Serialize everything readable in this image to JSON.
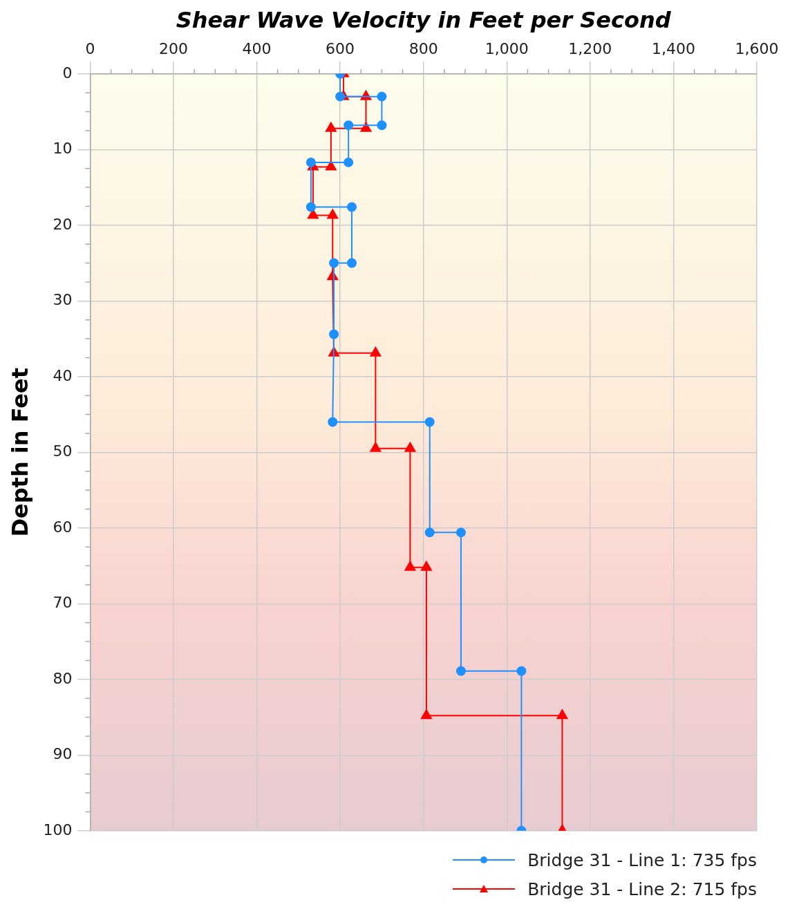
{
  "chart_data": {
    "type": "line",
    "xlabel": "Shear Wave Velocity in Feet per Second",
    "ylabel": "Depth in Feet",
    "xlim": [
      0,
      1600
    ],
    "xticks": [
      0,
      200,
      400,
      600,
      800,
      {
        "value": 1000,
        "label": "1,000"
      },
      {
        "value": 1200,
        "label": "1,200"
      },
      {
        "value": 1400,
        "label": "1,400"
      },
      {
        "value": 1600,
        "label": "1,600"
      }
    ],
    "ylim": [
      100,
      0
    ],
    "yticks": [
      0,
      10,
      20,
      30,
      40,
      50,
      60,
      70,
      80,
      90,
      100
    ],
    "grid": true,
    "legend": "bottom right",
    "line_style": "solid",
    "series": [
      {
        "name": "Bridge 31 - Line 1:  735 fps",
        "color": "#1e90ff",
        "marker": "circle",
        "x": [
          600,
          600,
          700,
          700,
          620,
          620,
          530,
          530,
          628,
          628,
          585,
          585,
          582,
          815,
          815,
          890,
          890,
          1035,
          1035
        ],
        "values": [
          0,
          3,
          3,
          6.8,
          6.8,
          11.7,
          11.7,
          17.6,
          17.6,
          25,
          25,
          34.4,
          46,
          46,
          60.6,
          60.6,
          78.9,
          78.9,
          100
        ]
      },
      {
        "name": "Bridge 31 - Line 2:  715 fps",
        "color": "#ff0000",
        "marker": "triangle",
        "x": [
          608,
          608,
          662,
          662,
          578,
          578,
          535,
          535,
          582,
          582,
          585,
          685,
          685,
          768,
          768,
          807,
          807,
          1133,
          1133
        ],
        "values": [
          0,
          3,
          3,
          7.2,
          7.2,
          12.3,
          12.3,
          18.7,
          18.7,
          26.8,
          36.9,
          36.9,
          49.5,
          49.5,
          65.2,
          65.2,
          84.8,
          84.8,
          100
        ]
      }
    ]
  }
}
